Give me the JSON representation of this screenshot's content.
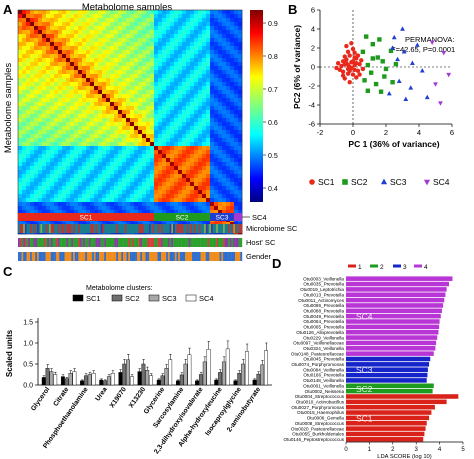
{
  "figure": {
    "panel_labels": [
      "A",
      "B",
      "C",
      "D"
    ]
  },
  "colors": {
    "sc1": "#e8291c",
    "sc2": "#1e9a1e",
    "sc3": "#1f3fd1",
    "sc4": "#a23ad1",
    "lda_sc1": "#d9221a",
    "lda_sc2": "#1e9a1e",
    "lda_sc3": "#1525c9",
    "lda_sc4": "#b936d6"
  },
  "panelA": {
    "title": "Metabolome samples",
    "ylabel": "Metabolome samples",
    "colorbar_ticks": [
      "0.4",
      "0.5",
      "0.6",
      "0.7",
      "0.8",
      "0.9"
    ],
    "bar_labels": [
      "SC1",
      "SC2",
      "SC3",
      "SC4"
    ],
    "track_labels": [
      "Microbiome SC",
      "Host' SC",
      "Gender"
    ]
  },
  "chart_data": [
    {
      "type": "heatmap",
      "title": "Metabolome samples",
      "ylabel": "Metabolome samples",
      "colorbar_range": [
        0.4,
        0.9
      ],
      "clusters": [
        "SC1",
        "SC2",
        "SC3",
        "SC4"
      ],
      "cluster_extent_fraction": [
        0.61,
        0.85,
        0.96,
        1.0
      ]
    },
    {
      "type": "scatter",
      "xlabel": "PC 1 (36% of variance)",
      "ylabel": "PC2 (6% of variance)",
      "xlim": [
        -2,
        6
      ],
      "ylim": [
        -6,
        6
      ],
      "xticks": [
        -2,
        0,
        2,
        4,
        6
      ],
      "yticks": [
        -6,
        -4,
        -2,
        0,
        2,
        4,
        6
      ],
      "annotation_line1": "PERMANOVA:",
      "annotation_line2": "F=42.65, P=0.0001",
      "legend_position": "bottom",
      "series": [
        {
          "name": "SC1",
          "marker": "circle",
          "points": [
            [
              -0.5,
              0.3
            ],
            [
              -0.3,
              -0.2
            ],
            [
              -0.4,
              0.8
            ],
            [
              -0.2,
              1.2
            ],
            [
              -0.6,
              -0.5
            ],
            [
              -0.1,
              0.5
            ],
            [
              0.0,
              -0.8
            ],
            [
              0.1,
              0.2
            ],
            [
              -0.3,
              1.6
            ],
            [
              -0.5,
              -1.2
            ],
            [
              -0.7,
              0.1
            ],
            [
              0.2,
              0.9
            ],
            [
              0.3,
              -0.4
            ],
            [
              -0.2,
              -1.6
            ],
            [
              0.1,
              1.5
            ],
            [
              -0.4,
              2.2
            ],
            [
              -0.6,
              0.6
            ],
            [
              0.4,
              0.3
            ],
            [
              -0.1,
              -0.1
            ],
            [
              -0.8,
              -0.3
            ],
            [
              0.0,
              0.6
            ],
            [
              0.3,
              1.2
            ],
            [
              -0.2,
              0.0
            ],
            [
              -0.5,
              1.1
            ],
            [
              0.2,
              -1.1
            ],
            [
              -0.3,
              -0.7
            ],
            [
              0.5,
              0.7
            ],
            [
              -0.9,
              0.4
            ],
            [
              0.1,
              -0.3
            ],
            [
              -0.1,
              2.5
            ],
            [
              -0.6,
              -0.9
            ],
            [
              0.4,
              -0.8
            ],
            [
              0.0,
              1.9
            ],
            [
              -0.4,
              0.4
            ],
            [
              -0.2,
              -0.4
            ],
            [
              0.2,
              0.4
            ],
            [
              -1.0,
              -0.1
            ],
            [
              0.6,
              -0.2
            ],
            [
              -0.3,
              0.2
            ],
            [
              0.1,
              1.0
            ]
          ]
        },
        {
          "name": "SC2",
          "marker": "square",
          "points": [
            [
              0.8,
              3.2
            ],
            [
              1.2,
              2.4
            ],
            [
              0.6,
              1.6
            ],
            [
              1.5,
              1.0
            ],
            [
              0.9,
              0.2
            ],
            [
              1.8,
              0.6
            ],
            [
              1.1,
              -0.6
            ],
            [
              2.0,
              -0.2
            ],
            [
              0.7,
              -1.4
            ],
            [
              1.4,
              -1.8
            ],
            [
              2.3,
              1.7
            ],
            [
              1.6,
              2.9
            ],
            [
              0.9,
              -2.5
            ],
            [
              1.9,
              -1.0
            ],
            [
              2.6,
              0.3
            ],
            [
              1.2,
              0.9
            ],
            [
              1.7,
              -2.6
            ],
            [
              2.4,
              -1.6
            ]
          ]
        },
        {
          "name": "SC3",
          "marker": "triangle",
          "points": [
            [
              2.5,
              3.1
            ],
            [
              3.1,
              1.6
            ],
            [
              2.8,
              -1.5
            ],
            [
              3.6,
              0.4
            ],
            [
              2.2,
              -2.8
            ],
            [
              3.9,
              2.3
            ],
            [
              3.2,
              -3.4
            ],
            [
              4.2,
              -0.4
            ],
            [
              2.7,
              0.8
            ],
            [
              4.5,
              -3.2
            ],
            [
              3.5,
              -2.2
            ],
            [
              2.4,
              2.0
            ],
            [
              3.0,
              4.0
            ]
          ]
        },
        {
          "name": "SC4",
          "marker": "triangle-down",
          "points": [
            [
              4.8,
              2.6
            ],
            [
              5.5,
              1.5
            ],
            [
              5.0,
              -1.8
            ],
            [
              5.8,
              -0.8
            ],
            [
              5.3,
              -3.8
            ]
          ]
        }
      ]
    },
    {
      "type": "bar",
      "legend_title": "Metabolome clusters:",
      "ylabel": "Scaled units",
      "ylim": [
        0,
        1.5
      ],
      "yticks": [
        0,
        0.5,
        1.0,
        1.5
      ],
      "categories": [
        "Glycerol",
        "Citrate",
        "Phosphoethanolamine",
        "Urea",
        "X19070",
        "X13230",
        "Glycerine",
        "Sarcosylamine",
        "2,3-dihydroxyisovalerate",
        "Alpha-hydroxyleucine",
        "Isocaproylglycine",
        "2-aminobutyrate"
      ],
      "series": [
        {
          "name": "SC1",
          "values": [
            0.18,
            0.2,
            0.1,
            0.12,
            0.3,
            0.32,
            0.12,
            0.1,
            0.1,
            0.12,
            0.1,
            0.12
          ]
        },
        {
          "name": "SC2",
          "values": [
            0.4,
            0.15,
            0.22,
            0.1,
            0.5,
            0.5,
            0.22,
            0.24,
            0.25,
            0.3,
            0.28,
            0.26
          ]
        },
        {
          "name": "SC3",
          "values": [
            0.32,
            0.28,
            0.25,
            0.2,
            0.6,
            0.35,
            0.4,
            0.5,
            0.55,
            0.55,
            0.5,
            0.48
          ]
        },
        {
          "name": "SC4",
          "values": [
            0.25,
            0.32,
            0.28,
            0.28,
            0.2,
            0.22,
            0.6,
            0.72,
            0.85,
            0.86,
            0.8,
            0.82
          ]
        }
      ]
    },
    {
      "type": "bar",
      "orientation": "horizontal",
      "xlabel": "LDA SCORE (log 10)",
      "xlim": [
        0,
        5
      ],
      "xticks": [
        0,
        1,
        2,
        3,
        4,
        5
      ],
      "legend": [
        "1",
        "2",
        "3",
        "4"
      ],
      "group_labels": [
        "SC4",
        "SC3",
        "SC2",
        "SC1"
      ],
      "categories": [
        "Otu0003_Veillonella",
        "Otu0035_Prevotella",
        "Otu0019_Leptotrichia",
        "Otu0013_Prevotella",
        "Otu0011_Actinomyces",
        "Otu0086_Prevotella",
        "Otu0088_Prevotella",
        "Otu0049_Prevotella",
        "Otu0064_Prevotella",
        "Otu0065_Prevotella",
        "Otu0126_Alloprevotella",
        "Otu0229_Veillonella",
        "Otu0097_Veillonellaceae",
        "Otu0324_Veillonella",
        "Otu0148_Pasteurellaceae",
        "Otu0045_Prevotella",
        "Otu0074_Porphyromonas",
        "Otu0084_Veillonella",
        "Otu0166_Prevotella",
        "Otu0148_Veillonella",
        "Otu0001_Veillonella",
        "Otu0002_Neisseria",
        "Otu0004_Streptococcus",
        "Otu0010_Actinobacillus",
        "Otu0027_Porphyromonas",
        "Otu0015_Haemophilus",
        "Otu0006_Gemella",
        "Otu0008_Streptococcus",
        "Otu0020_Pasteurellaceae",
        "Otu0055_Burkholderiales",
        "Otu0146_Peptostreptococcus"
      ],
      "groups": [
        4,
        4,
        4,
        4,
        4,
        4,
        4,
        4,
        4,
        4,
        4,
        4,
        4,
        4,
        4,
        3,
        3,
        3,
        3,
        3,
        2,
        2,
        1,
        1,
        1,
        1,
        1,
        1,
        1,
        1,
        1
      ],
      "values": [
        4.55,
        4.4,
        4.3,
        4.25,
        4.2,
        4.15,
        4.1,
        4.05,
        4.0,
        3.98,
        3.95,
        3.9,
        3.85,
        3.82,
        3.75,
        3.6,
        3.55,
        3.5,
        3.48,
        3.45,
        3.75,
        3.7,
        4.8,
        4.3,
        3.8,
        3.65,
        3.55,
        3.45,
        3.4,
        3.35,
        3.3
      ]
    }
  ]
}
